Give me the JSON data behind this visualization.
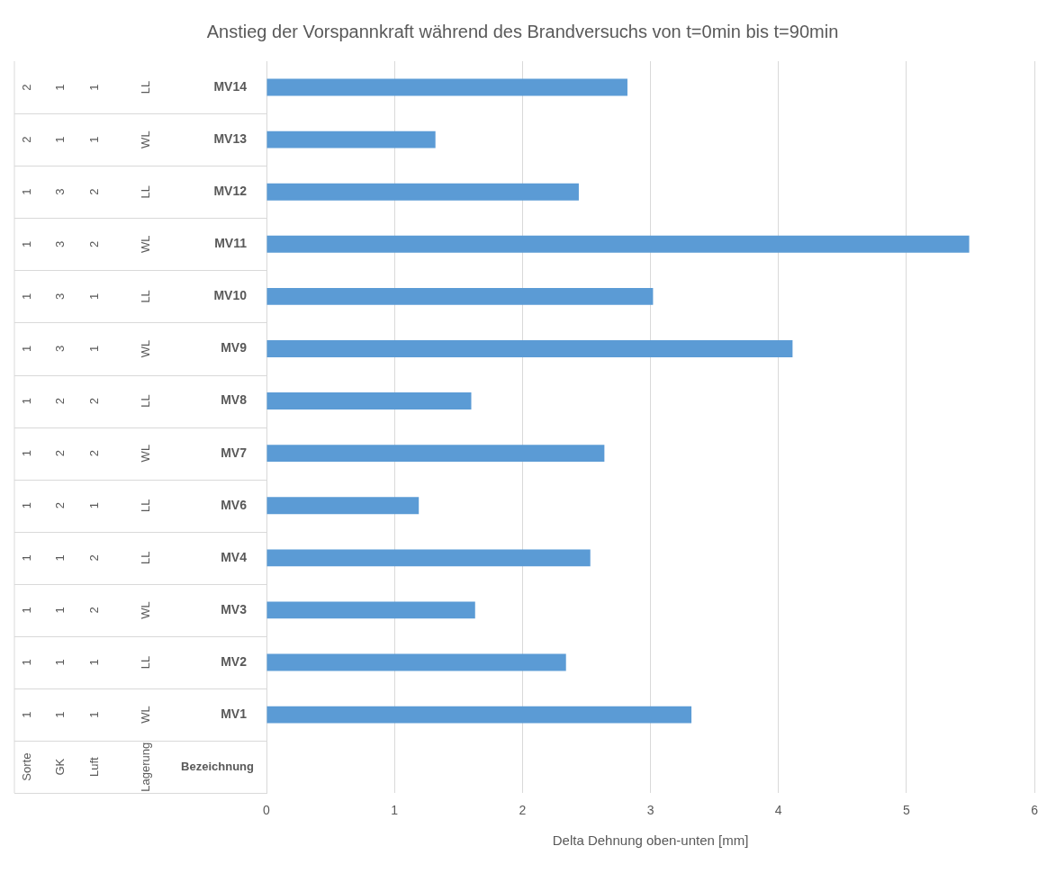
{
  "chart_data": {
    "type": "bar",
    "orientation": "horizontal",
    "title": "Anstieg der Vorspannkraft während des Brandversuchs von t=0min bis t=90min",
    "xlabel": "Delta Dehnung oben-unten [mm]",
    "categories": [
      "MV14",
      "MV13",
      "MV12",
      "MV11",
      "MV10",
      "MV9",
      "MV8",
      "MV7",
      "MV6",
      "MV4",
      "MV3",
      "MV2",
      "MV1",
      null
    ],
    "values": [
      2.82,
      1.32,
      2.44,
      5.49,
      3.02,
      4.11,
      1.6,
      2.64,
      1.19,
      2.53,
      1.63,
      2.34,
      3.32,
      null
    ],
    "color": "#5b9bd5",
    "xlim": [
      0,
      6
    ],
    "xticks": [
      0,
      1,
      2,
      3,
      4,
      5,
      6
    ],
    "grid": "x",
    "annotations": [
      "2",
      "1",
      "1",
      "LL",
      "2",
      "1",
      "1",
      "WL",
      "1",
      "3",
      "2",
      "LL",
      "1",
      "3",
      "2",
      "WL",
      "1",
      "3",
      "1",
      "LL",
      "1",
      "3",
      "1",
      "WL",
      "1",
      "2",
      "2",
      "LL",
      "1",
      "2",
      "2",
      "WL",
      "1",
      "2",
      "1",
      "LL",
      "1",
      "1",
      "2",
      "LL",
      "1",
      "1",
      "2",
      "WL",
      "1",
      "1",
      "1",
      "LL",
      "1",
      "1",
      "1",
      "WL",
      "Sorte",
      "GK",
      "Luft",
      "Lagerung",
      "Bezeichnung"
    ]
  }
}
